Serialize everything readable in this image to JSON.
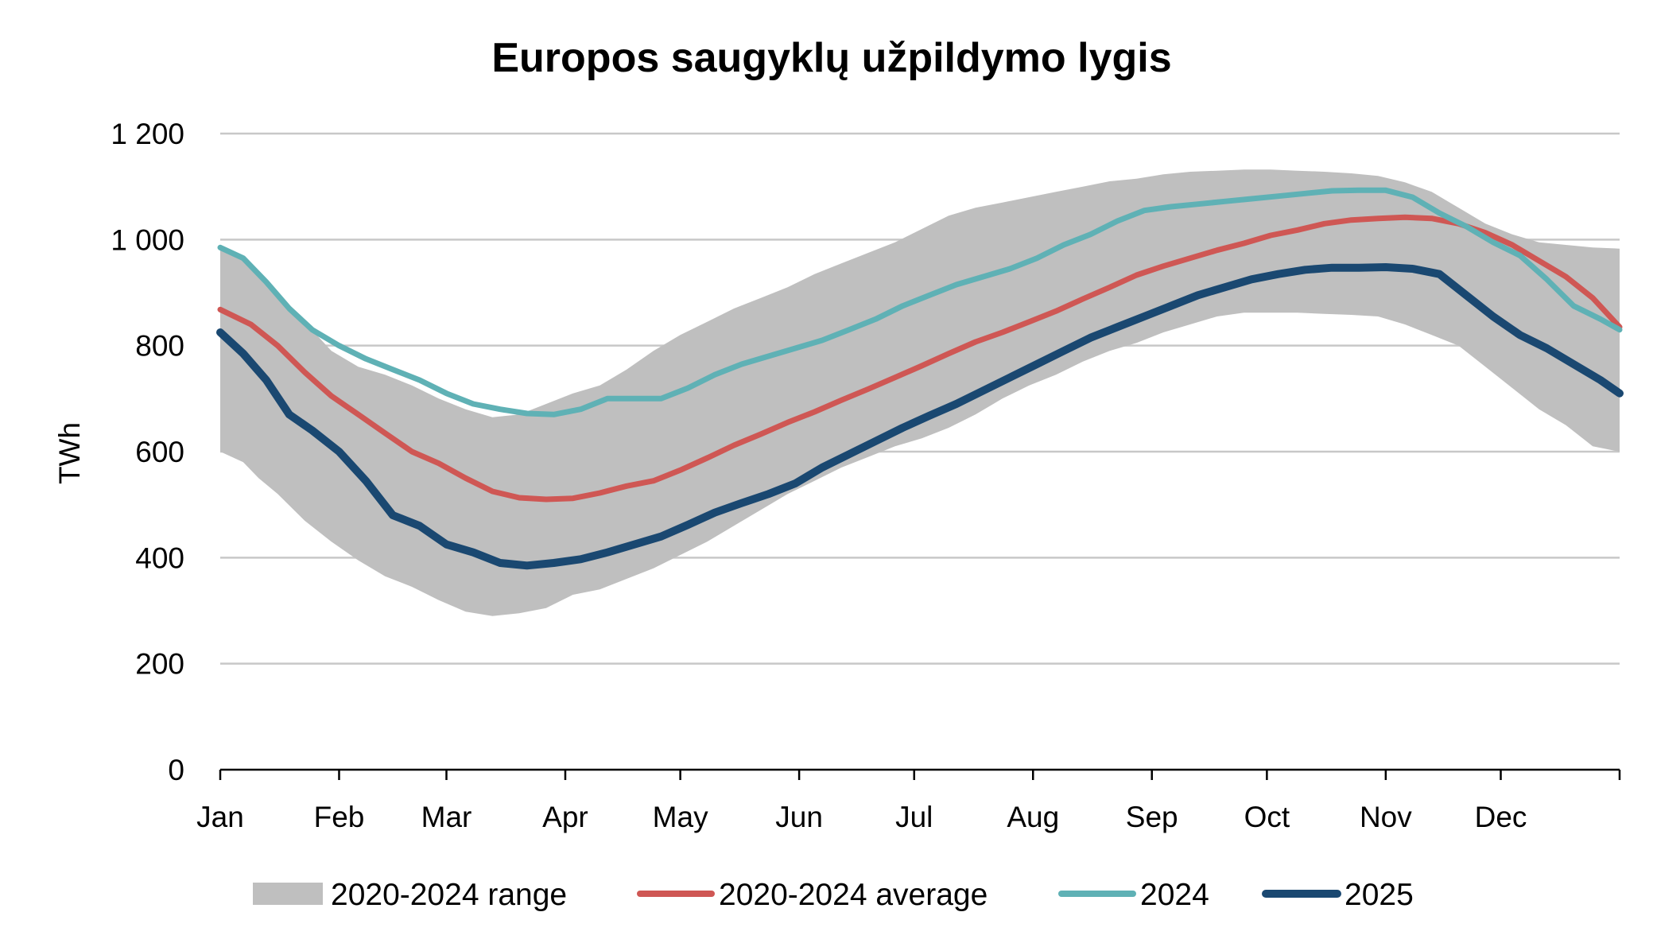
{
  "chart_data": {
    "type": "line",
    "title": "Europos saugyklų užpildymo lygis",
    "xlabel": "",
    "ylabel": "TWh",
    "ylim": [
      0,
      1200
    ],
    "yticks": [
      0,
      200,
      400,
      600,
      800,
      1000,
      1200
    ],
    "ytick_labels": [
      "0",
      "200",
      "400",
      "600",
      "800",
      "1 000",
      "1 200"
    ],
    "xtick_labels": [
      "Jan",
      "Feb",
      "Mar",
      "Apr",
      "May",
      "Jun",
      "Jul",
      "Aug",
      "Sep",
      "Oct",
      "Nov",
      "Dec"
    ],
    "xtick_days": [
      0,
      31,
      59,
      90,
      120,
      151,
      181,
      212,
      243,
      273,
      304,
      334
    ],
    "x_end_day": 365,
    "grid": true,
    "legend_position": "bottom",
    "range": {
      "name": "2020-2024 range",
      "color": "#bfbfbf",
      "x": [
        0,
        6,
        10,
        15,
        22,
        29,
        36,
        43,
        50,
        57,
        64,
        71,
        78,
        85,
        92,
        99,
        106,
        113,
        120,
        127,
        134,
        141,
        148,
        155,
        162,
        169,
        176,
        183,
        190,
        197,
        204,
        211,
        218,
        225,
        232,
        239,
        246,
        253,
        260,
        267,
        274,
        281,
        288,
        295,
        302,
        309,
        316,
        323,
        330,
        337,
        344,
        351,
        358,
        365
      ],
      "lower": [
        600,
        580,
        550,
        520,
        470,
        430,
        395,
        365,
        345,
        320,
        298,
        290,
        295,
        305,
        330,
        340,
        360,
        380,
        405,
        430,
        460,
        490,
        520,
        545,
        570,
        590,
        610,
        625,
        645,
        670,
        700,
        725,
        745,
        770,
        790,
        805,
        825,
        840,
        855,
        862,
        862,
        862,
        860,
        858,
        855,
        840,
        820,
        800,
        760,
        720,
        680,
        650,
        610,
        600
      ],
      "upper": [
        985,
        960,
        935,
        900,
        845,
        790,
        760,
        745,
        725,
        700,
        680,
        665,
        670,
        690,
        710,
        725,
        755,
        790,
        820,
        845,
        870,
        890,
        910,
        935,
        955,
        975,
        995,
        1020,
        1045,
        1060,
        1070,
        1080,
        1090,
        1100,
        1110,
        1115,
        1123,
        1128,
        1130,
        1132,
        1132,
        1130,
        1128,
        1125,
        1120,
        1108,
        1090,
        1060,
        1030,
        1010,
        995,
        990,
        985,
        983
      ]
    },
    "series": [
      {
        "name": "2020-2024 average",
        "color": "#cf5754",
        "x": [
          0,
          8,
          15,
          22,
          29,
          36,
          43,
          50,
          57,
          64,
          71,
          78,
          85,
          92,
          99,
          106,
          113,
          120,
          127,
          134,
          141,
          148,
          155,
          162,
          169,
          176,
          183,
          190,
          197,
          204,
          211,
          218,
          225,
          232,
          239,
          246,
          253,
          260,
          267,
          274,
          281,
          288,
          295,
          302,
          309,
          316,
          323,
          330,
          337,
          344,
          351,
          358,
          365
        ],
        "values": [
          868,
          840,
          800,
          750,
          705,
          670,
          635,
          600,
          578,
          550,
          525,
          513,
          510,
          512,
          522,
          535,
          545,
          565,
          588,
          612,
          633,
          655,
          675,
          697,
          718,
          740,
          762,
          785,
          807,
          825,
          845,
          865,
          888,
          910,
          933,
          950,
          965,
          980,
          993,
          1008,
          1018,
          1030,
          1037,
          1040,
          1042,
          1040,
          1030,
          1013,
          990,
          960,
          930,
          890,
          835
        ]
      },
      {
        "name": "2024",
        "color": "#5fb1b5",
        "x": [
          0,
          6,
          12,
          18,
          24,
          31,
          38,
          45,
          52,
          59,
          66,
          73,
          80,
          87,
          94,
          101,
          108,
          115,
          122,
          129,
          136,
          143,
          150,
          157,
          164,
          171,
          178,
          185,
          192,
          199,
          206,
          213,
          220,
          227,
          234,
          241,
          248,
          255,
          262,
          269,
          276,
          283,
          290,
          297,
          304,
          311,
          318,
          325,
          332,
          339,
          346,
          353,
          360,
          365
        ],
        "values": [
          985,
          965,
          920,
          870,
          830,
          800,
          775,
          755,
          735,
          710,
          690,
          680,
          672,
          670,
          680,
          700,
          700,
          700,
          720,
          745,
          765,
          780,
          795,
          810,
          830,
          850,
          875,
          895,
          915,
          930,
          945,
          965,
          990,
          1010,
          1035,
          1055,
          1062,
          1067,
          1072,
          1077,
          1082,
          1087,
          1092,
          1093,
          1093,
          1080,
          1050,
          1025,
          995,
          970,
          925,
          875,
          850,
          830
        ]
      },
      {
        "name": "2025",
        "color": "#1a4871",
        "x": [
          0,
          6,
          12,
          18,
          24,
          31,
          38,
          45,
          52,
          59,
          66,
          73,
          80,
          87,
          94,
          101,
          108,
          115,
          122,
          129,
          136,
          143,
          150,
          157,
          164,
          171,
          178,
          185,
          192,
          199,
          206,
          213,
          220,
          227,
          234,
          241,
          248,
          255,
          262,
          269,
          276,
          283,
          290,
          297,
          304,
          311,
          318,
          325,
          332,
          339,
          346,
          353,
          360,
          365
        ],
        "values": [
          825,
          785,
          735,
          670,
          640,
          600,
          545,
          480,
          460,
          425,
          410,
          390,
          385,
          390,
          397,
          410,
          425,
          440,
          462,
          485,
          503,
          520,
          540,
          570,
          595,
          620,
          645,
          668,
          690,
          715,
          740,
          765,
          790,
          815,
          835,
          855,
          875,
          895,
          910,
          925,
          935,
          943,
          947,
          947,
          948,
          945,
          935,
          895,
          855,
          820,
          795,
          765,
          735,
          710
        ]
      }
    ]
  }
}
